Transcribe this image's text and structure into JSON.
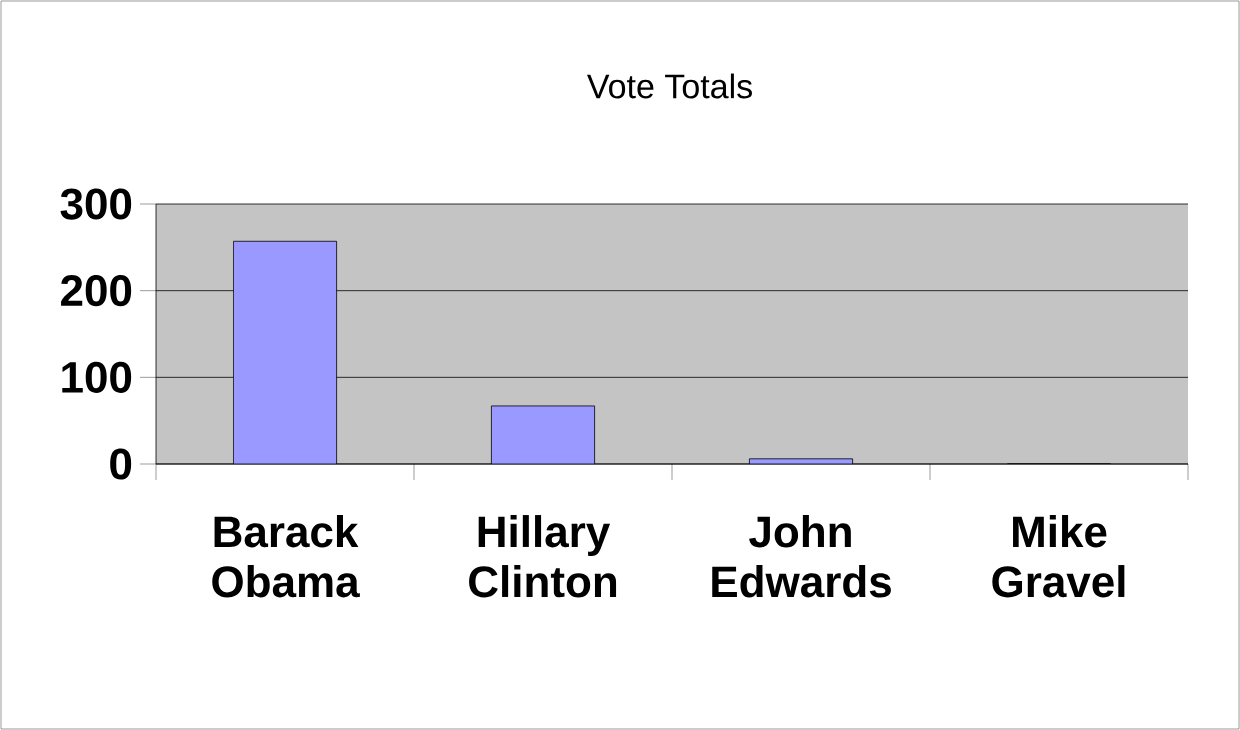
{
  "chart_data": {
    "type": "bar",
    "title": "Vote Totals",
    "categories": [
      "Barack Obama",
      "Hillary Clinton",
      "John Edwards",
      "Mike Gravel"
    ],
    "values": [
      257,
      67,
      6,
      0
    ],
    "color": "#9999ff",
    "ylim": [
      0,
      300
    ],
    "yticks": [
      0,
      100,
      200,
      300
    ],
    "grid": "y"
  }
}
